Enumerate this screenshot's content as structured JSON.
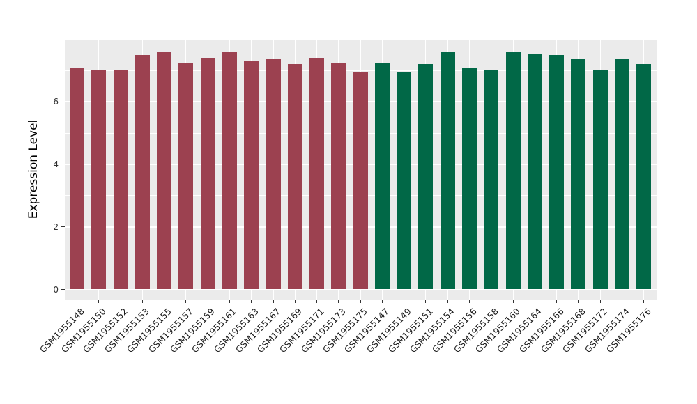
{
  "chart_data": {
    "type": "bar",
    "title": "",
    "xlabel": "",
    "ylabel": "Expression Level",
    "ylim": [
      0,
      7.97
    ],
    "yticks": [
      0,
      2,
      4,
      6
    ],
    "minor_yticks": [
      1,
      3,
      5,
      7
    ],
    "grid": "on",
    "legend_position": "none",
    "categories": [
      "GSM1955148",
      "GSM1955150",
      "GSM1955152",
      "GSM1955153",
      "GSM1955155",
      "GSM1955157",
      "GSM1955159",
      "GSM1955161",
      "GSM1955163",
      "GSM1955167",
      "GSM1955169",
      "GSM1955171",
      "GSM1955173",
      "GSM1955175",
      "GSM1955147",
      "GSM1955149",
      "GSM1955151",
      "GSM1955154",
      "GSM1955156",
      "GSM1955158",
      "GSM1955160",
      "GSM1955164",
      "GSM1955166",
      "GSM1955168",
      "GSM1955172",
      "GSM1955174",
      "GSM1955176"
    ],
    "values": [
      7.08,
      7.0,
      7.03,
      7.49,
      7.59,
      7.26,
      7.41,
      7.59,
      7.32,
      7.38,
      7.2,
      7.41,
      7.23,
      6.94,
      7.26,
      6.97,
      7.2,
      7.61,
      7.07,
      7.0,
      7.61,
      7.52,
      7.49,
      7.38,
      7.03,
      7.38,
      7.2
    ],
    "bar_groups": [
      "group1",
      "group1",
      "group1",
      "group1",
      "group1",
      "group1",
      "group1",
      "group1",
      "group1",
      "group1",
      "group1",
      "group1",
      "group1",
      "group1",
      "group2",
      "group2",
      "group2",
      "group2",
      "group2",
      "group2",
      "group2",
      "group2",
      "group2",
      "group2",
      "group2",
      "group2",
      "group2"
    ],
    "group_colors": {
      "group1": "#9C4150",
      "group2": "#016847"
    }
  },
  "style": {
    "panel_background": "#EBEBEB",
    "grid_color": "#FFFFFF",
    "axis_text_color": "#303030",
    "tick_mark_color": "#333333"
  }
}
